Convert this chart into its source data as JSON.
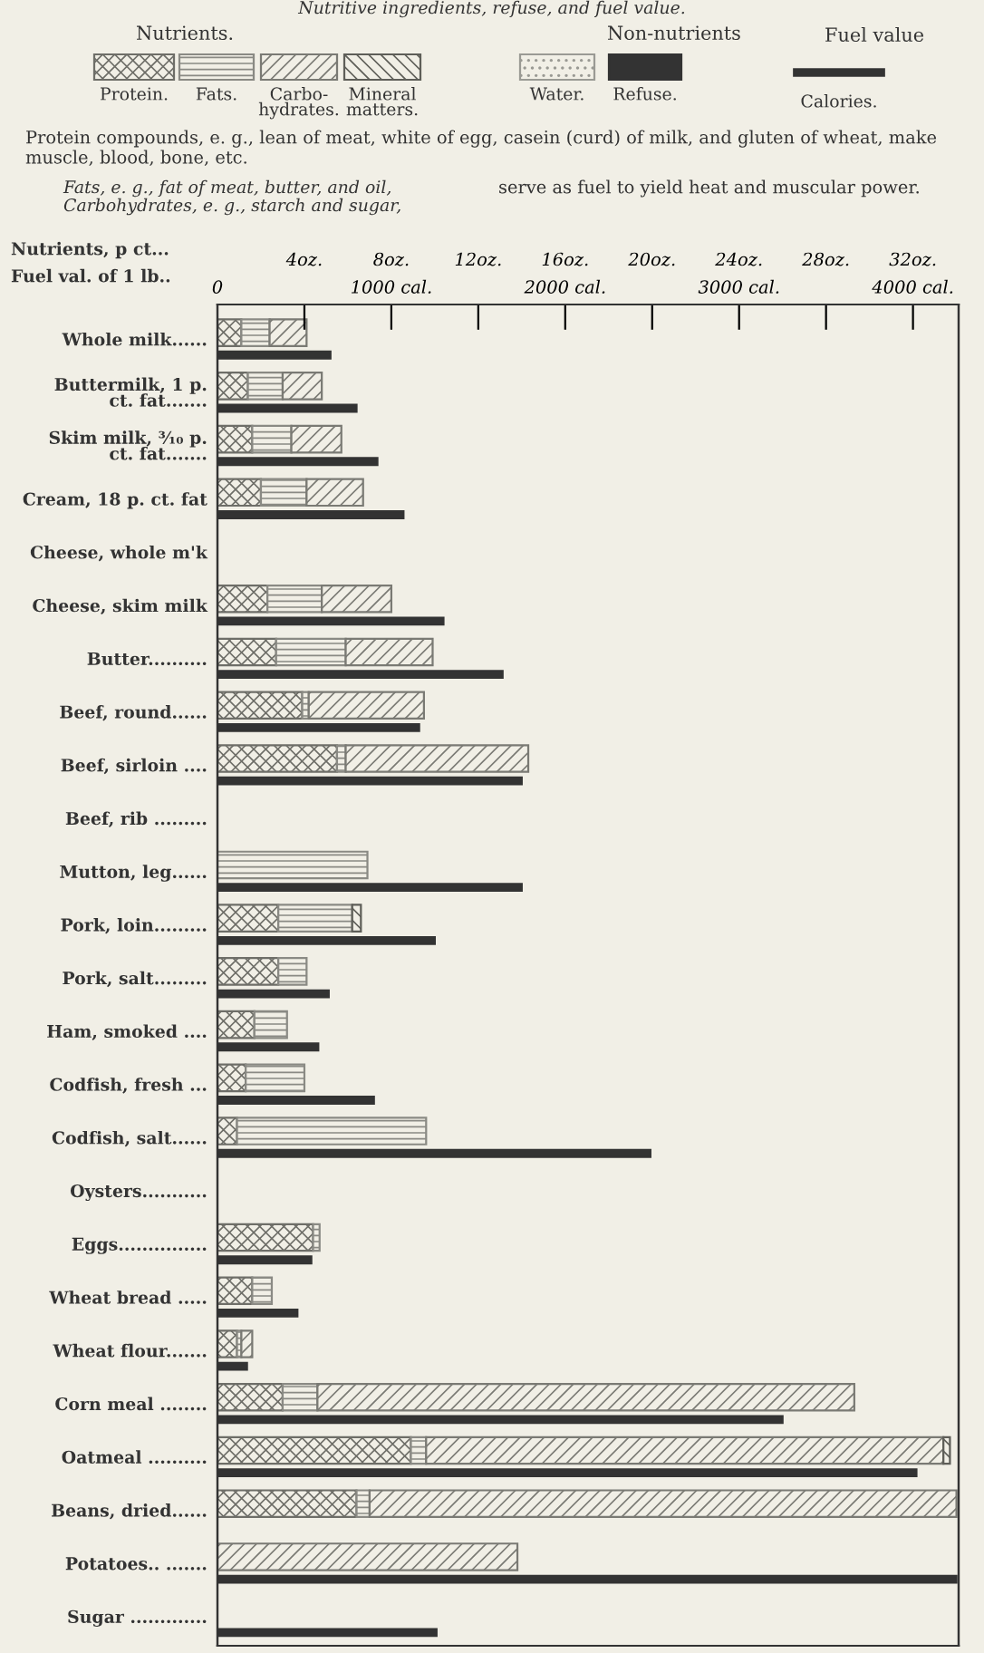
{
  "chart_data": [
    {
      "type": "bar",
      "orientation": "horizontal",
      "stacked": true,
      "title": "Nutritive ingredients, refuse, and fuel value.",
      "xlabel": "Nutrients, p ct...",
      "categories": [
        "Whole milk......",
        "Buttermilk, 1 p.\nct. fat.......",
        "Skim milk, ³⁄₁₀ p.\nct. fat.......",
        "Cream, 18 p. ct. fat",
        "Cheese, whole m'k",
        "Cheese, skim milk",
        "Butter..........",
        "Beef, round......",
        "Beef, sirloin ....",
        "Beef, rib .........",
        "Mutton, leg......",
        "Pork, loin.........",
        "Pork, salt.........",
        "Ham, smoked ....",
        "Codfish, fresh ...",
        "Codfish, salt......",
        "Oysters...........",
        "Eggs...............",
        "Wheat bread .....",
        "Wheat flour.......",
        "Corn meal ........",
        "Oatmeal ..........",
        "Beans, dried......",
        "Potatoes.. .......",
        "Sugar ............."
      ],
      "series": [
        {
          "name": "Protein.",
          "color": "#6e6e68",
          "values": [
            1.1,
            1.4,
            1.6,
            2.0,
            null,
            2.3,
            2.7,
            3.9,
            5.5,
            null,
            null,
            2.8,
            2.8,
            1.7,
            1.3,
            0.9,
            null,
            4.4,
            1.6,
            0.9,
            3.0,
            8.9,
            6.4,
            null,
            null
          ]
        },
        {
          "name": "Fats.",
          "color": "#8a8a84",
          "values": [
            1.3,
            1.6,
            1.8,
            2.1,
            null,
            2.5,
            3.2,
            0.3,
            0.4,
            null,
            6.9,
            3.4,
            1.3,
            1.5,
            2.7,
            8.7,
            null,
            0.3,
            0.9,
            0.2,
            1.6,
            0.7,
            0.6,
            null,
            null
          ]
        },
        {
          "name": "Carbo-\nhydrates.",
          "color": "#7a7a74",
          "values": [
            1.7,
            1.8,
            2.3,
            2.6,
            null,
            3.2,
            4.0,
            5.3,
            8.4,
            null,
            null,
            null,
            null,
            null,
            null,
            null,
            null,
            null,
            null,
            0.5,
            24.7,
            23.8,
            27.0,
            13.8,
            null
          ]
        },
        {
          "name": "Mineral\nmatters.",
          "color": "#5e5e58",
          "values": [
            null,
            null,
            null,
            null,
            null,
            null,
            null,
            null,
            null,
            null,
            null,
            0.4,
            null,
            null,
            null,
            null,
            null,
            null,
            null,
            null,
            null,
            0.3,
            null,
            null,
            null
          ]
        },
        {
          "name": "Water.",
          "color": "#9a9a94",
          "values": [
            null,
            null,
            null,
            null,
            null,
            null,
            null,
            null,
            null,
            null,
            null,
            null,
            null,
            null,
            null,
            null,
            null,
            null,
            null,
            null,
            null,
            null,
            null,
            null,
            null
          ]
        },
        {
          "name": "Refuse.",
          "color": "#333333",
          "values": [
            null,
            null,
            null,
            null,
            null,
            null,
            null,
            null,
            null,
            null,
            null,
            null,
            null,
            null,
            null,
            null,
            null,
            null,
            null,
            null,
            null,
            null,
            null,
            null,
            null
          ]
        }
      ],
      "xlim": [
        0,
        34.1
      ],
      "xticks": [
        {
          "value": 4,
          "label": "4oz."
        },
        {
          "value": 8,
          "label": "8oz."
        },
        {
          "value": 12,
          "label": "12oz."
        },
        {
          "value": 16,
          "label": "16oz."
        },
        {
          "value": 20,
          "label": "20oz."
        },
        {
          "value": 24,
          "label": "24oz."
        },
        {
          "value": 28,
          "label": "28oz."
        },
        {
          "value": 32,
          "label": "32oz."
        }
      ],
      "legend": "top",
      "annotations": [
        "Nutrients.",
        "Non-nutrients",
        "Fuel value",
        "Protein compounds, e. g., lean of meat, white of egg, casein (curd) of milk, and gluten of wheat, make muscle, blood, bone, etc.",
        "Fats, e. g., fat of meat, butter, and oil,",
        "Carbohydrates, e. g., starch and sugar,",
        "serve as fuel to yield heat and muscular power."
      ]
    },
    {
      "type": "bar",
      "orientation": "horizontal",
      "tick_labels": "x",
      "xlabel": "Fuel val. of 1 lb..",
      "categories": [
        null,
        null,
        null,
        null,
        null,
        null,
        null,
        null,
        null,
        null,
        null,
        null,
        null,
        null,
        null,
        null,
        null,
        null,
        null,
        null,
        null,
        null,
        null,
        null,
        null
      ],
      "series": [
        {
          "name": "Calories.",
          "color": "#333333",
          "values": [
            650,
            800,
            920,
            1070,
            null,
            1300,
            1640,
            1160,
            1750,
            null,
            1750,
            1250,
            640,
            580,
            900,
            2490,
            null,
            540,
            460,
            170,
            3250,
            4020,
            null,
            4250,
            1260
          ]
        }
      ],
      "xlim": [
        0,
        4262.5
      ],
      "xticks": [
        0,
        {
          "value": 1000,
          "label": "1000 cal."
        },
        {
          "value": 2000,
          "label": "2000 cal."
        },
        {
          "value": 3000,
          "label": "3000 cal."
        },
        {
          "value": 4000,
          "label": "4000 cal."
        }
      ],
      "legend": "top"
    }
  ]
}
